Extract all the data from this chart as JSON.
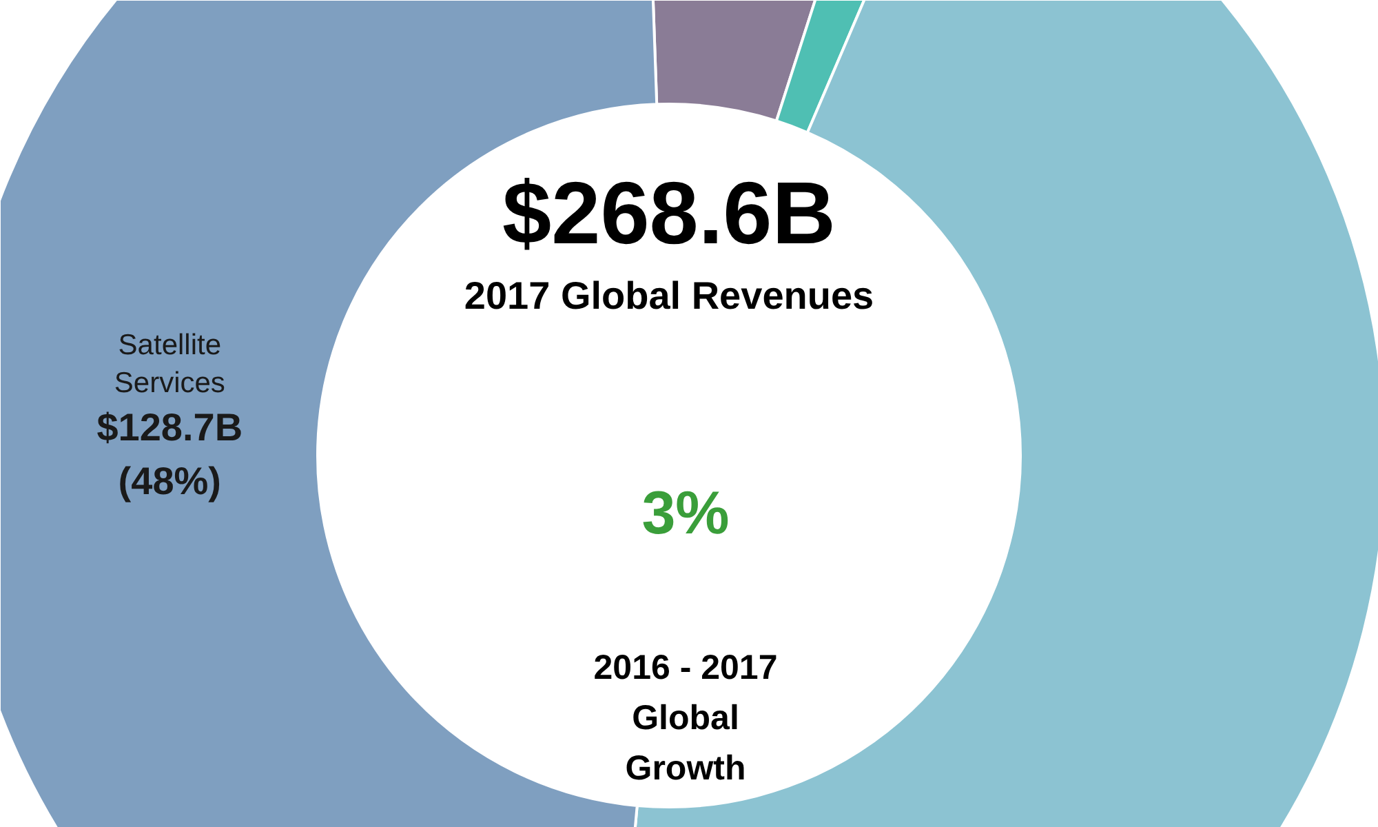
{
  "chart_data": {
    "type": "donut",
    "title": "$268.6B",
    "subtitle": "2017 Global Revenues",
    "categories": [
      null,
      null,
      null,
      "Satellite Services"
    ],
    "values": [
      5.5,
      1.5,
      45,
      48
    ],
    "colors": [
      "#8a7c96",
      "#4fbfb3",
      "#8cc3d2",
      "#7f9fc0"
    ],
    "value_labels": [
      null,
      null,
      null,
      "$128.7B\n(48%)"
    ],
    "annotations": [
      "3%",
      "2016 - 2017\nGlobal\nGrowth"
    ]
  }
}
